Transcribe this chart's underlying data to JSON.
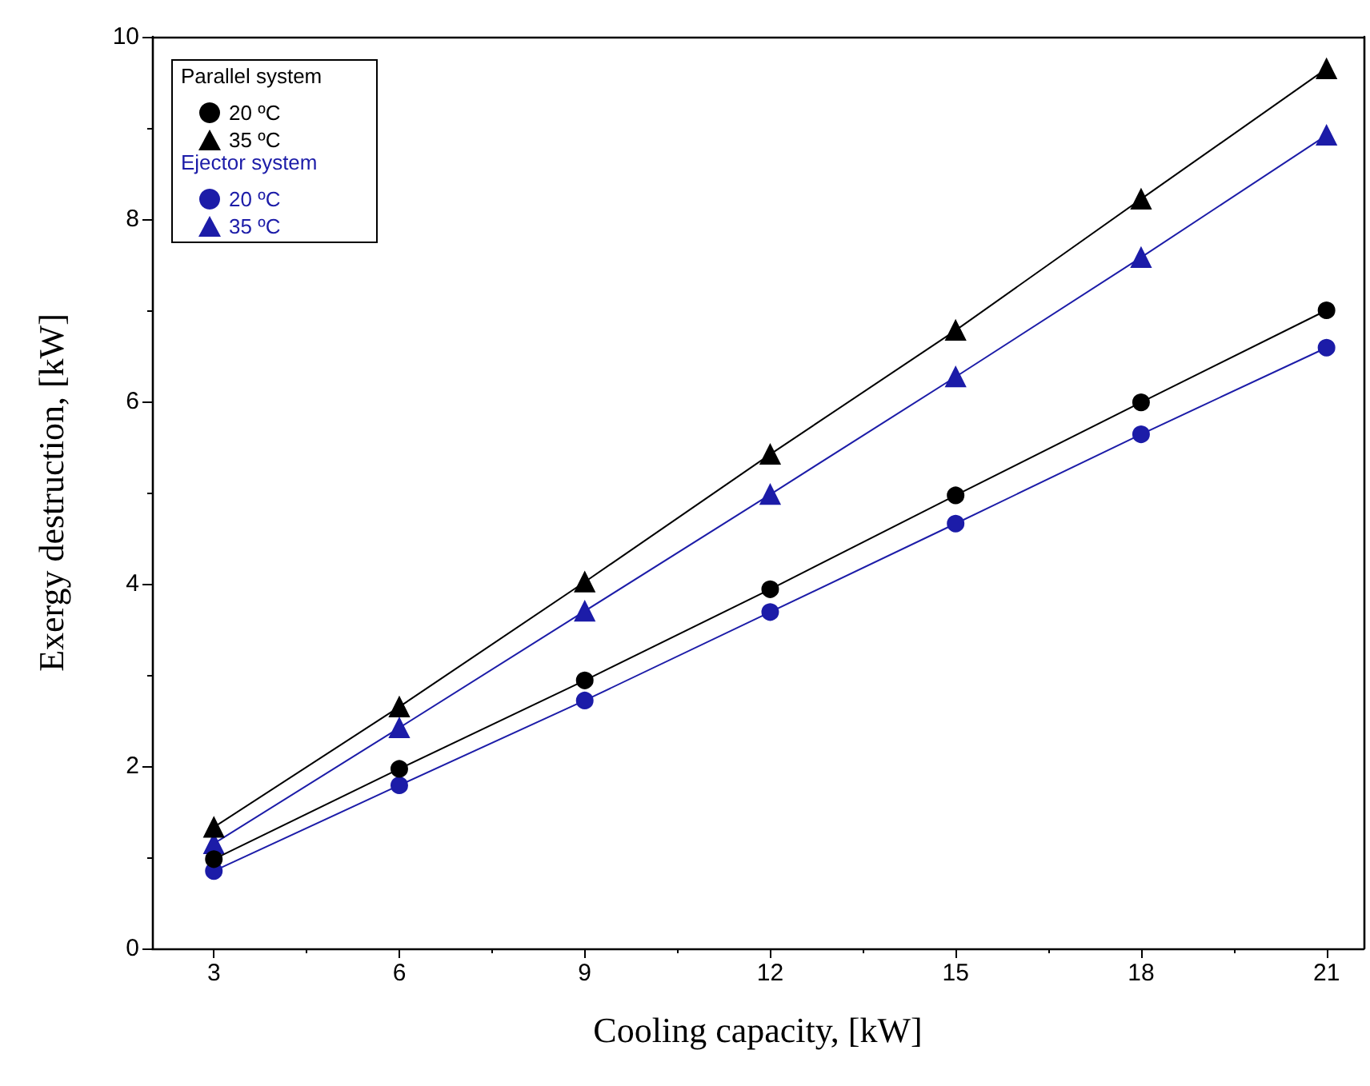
{
  "chart_data": {
    "type": "line",
    "xlabel": "Cooling capacity, [kW]",
    "ylabel": "Exergy destruction, [kW]",
    "x": [
      3,
      6,
      9,
      12,
      15,
      18,
      21
    ],
    "series": [
      {
        "name": "20 ºC",
        "color": "#000000",
        "marker": "circle",
        "values": [
          0.98,
          1.97,
          2.94,
          3.94,
          4.97,
          5.99,
          7.0
        ]
      },
      {
        "name": "35 ºC",
        "color": "#000000",
        "marker": "triangle",
        "values": [
          1.33,
          2.65,
          4.02,
          5.42,
          6.78,
          8.22,
          9.65
        ]
      },
      {
        "name": "20 ºC",
        "color": "#1c1ca8",
        "marker": "circle",
        "values": [
          0.85,
          1.79,
          2.72,
          3.69,
          4.66,
          5.64,
          6.59
        ]
      },
      {
        "name": "35 ºC",
        "color": "#1c1ca8",
        "marker": "triangle",
        "values": [
          1.15,
          2.42,
          3.7,
          4.98,
          6.27,
          7.58,
          8.92
        ]
      }
    ],
    "annotations": [
      "Parallel system",
      "Ejector system"
    ],
    "xlim": [
      2,
      21.6
    ],
    "xticks": [
      3,
      6,
      9,
      12,
      15,
      18,
      21
    ],
    "ylim": [
      0,
      10
    ],
    "yticks": [
      0,
      2,
      4,
      6,
      8,
      10
    ],
    "grid": false,
    "legend": "top left",
    "line_style": "solid"
  }
}
